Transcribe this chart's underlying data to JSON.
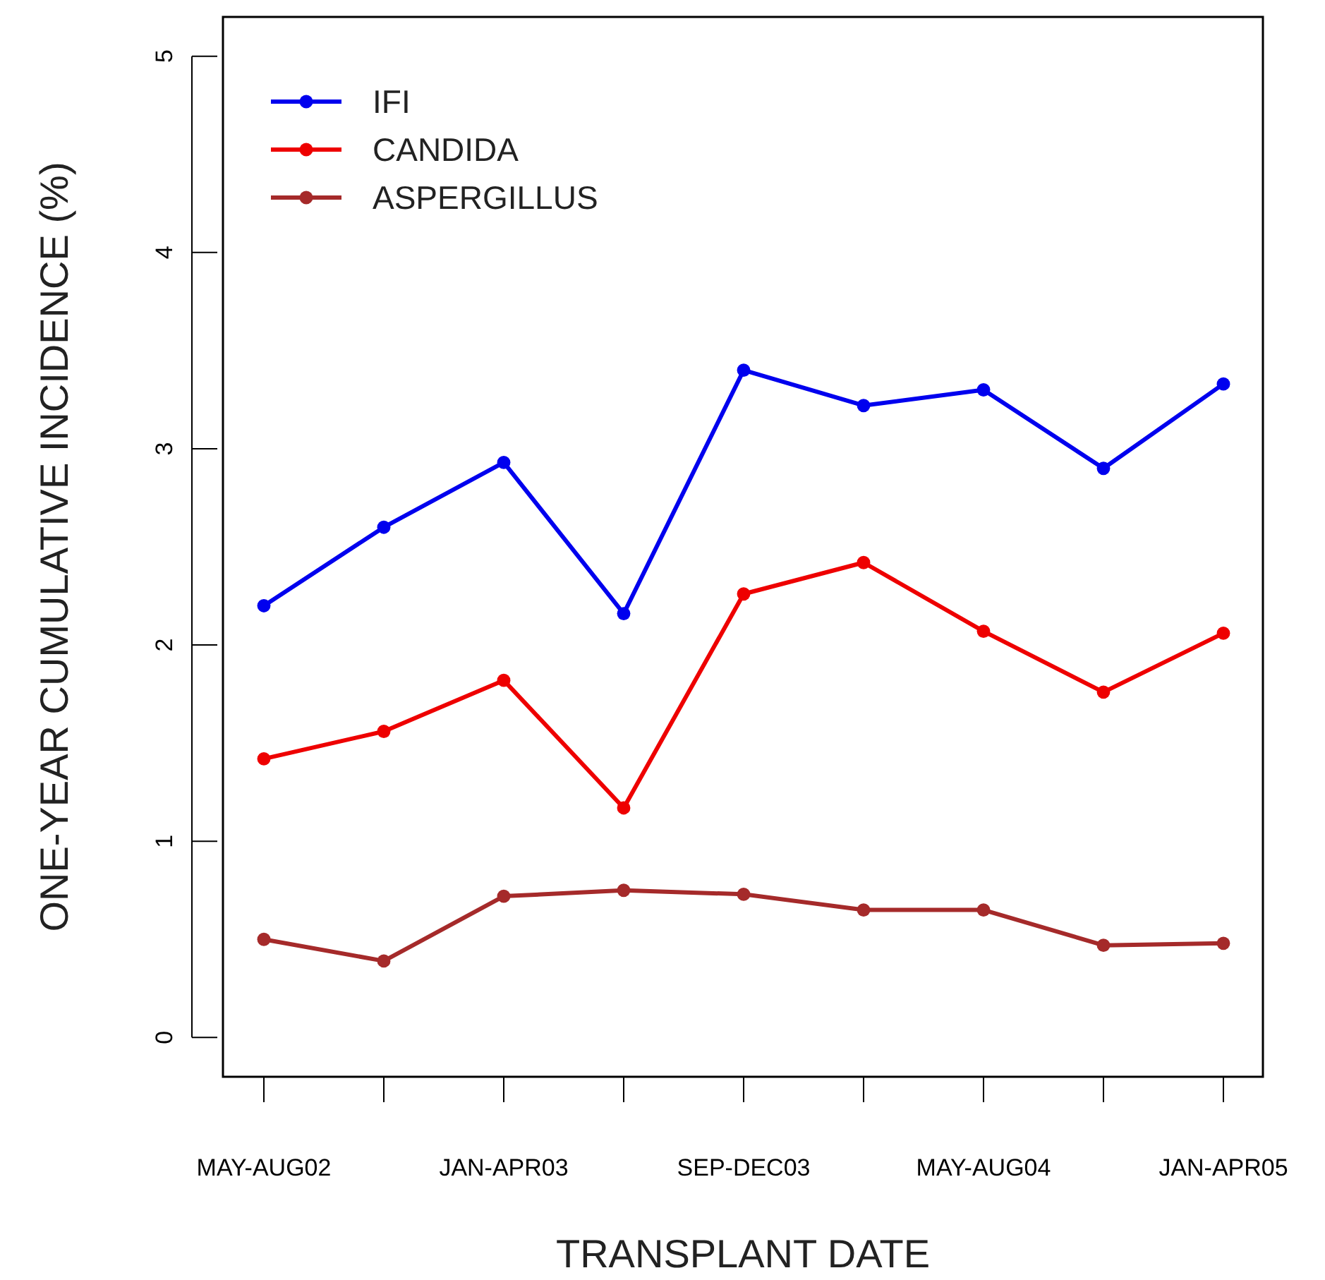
{
  "chart_data": {
    "type": "line",
    "xlabel": "TRANSPLANT DATE",
    "ylabel": "ONE-YEAR CUMULATIVE INCIDENCE (%)",
    "categories": [
      "MAY-AUG02",
      null,
      "JAN-APR03",
      null,
      "SEP-DEC03",
      null,
      "MAY-AUG04",
      null,
      "JAN-APR05"
    ],
    "series": [
      {
        "name": "IFI",
        "color": "#0000ee",
        "values": [
          2.2,
          2.6,
          2.93,
          2.16,
          3.4,
          3.22,
          3.3,
          2.9,
          3.33
        ]
      },
      {
        "name": "CANDIDA",
        "color": "#ee0000",
        "values": [
          1.42,
          1.56,
          1.82,
          1.17,
          2.26,
          2.42,
          2.07,
          1.76,
          2.06
        ]
      },
      {
        "name": "ASPERGILLUS",
        "color": "#a52a2a",
        "values": [
          0.5,
          0.39,
          0.72,
          0.75,
          0.73,
          0.65,
          0.65,
          0.47,
          0.48
        ]
      }
    ],
    "ylim": [
      -0.2,
      5.2
    ],
    "yticks": [
      0,
      1,
      2,
      3,
      4,
      5
    ],
    "legend": "top left",
    "marker": "circle",
    "line_style": "solid"
  }
}
